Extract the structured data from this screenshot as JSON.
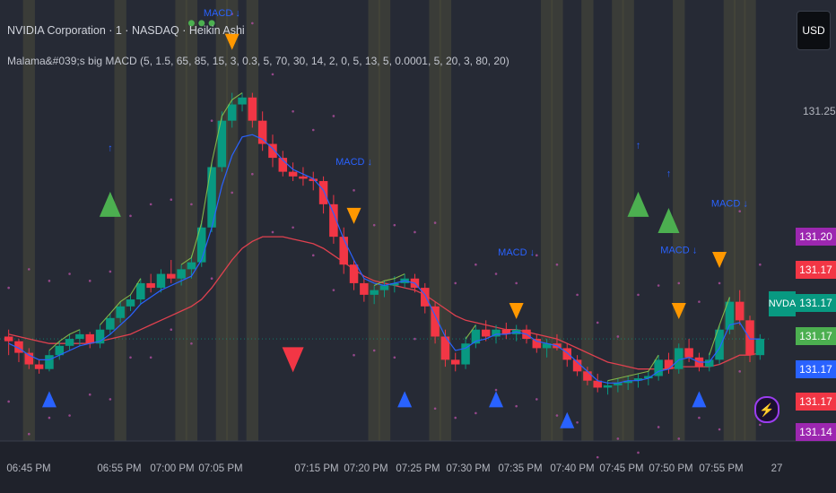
{
  "header": {
    "title_line": "NVIDIA Corporation · 1 · NASDAQ · Heikin Ashi",
    "indicator_line": "Malama&#039;s big MACD (5, 1.5, 65, 85, 15, 3, 0.3, 5, 70, 30, 14, 2, 0, 5, 13, 5, 0.0001, 5, 20, 3, 80, 20)"
  },
  "currency_button": "USD",
  "symbol_tag": "NVDA",
  "price_axis": {
    "level_label": "131.25",
    "tags": [
      {
        "value": "131.20",
        "color": "#9c27b0"
      },
      {
        "value": "131.17",
        "color": "#f23645"
      },
      {
        "value": "131.17",
        "color": "#089981"
      },
      {
        "value": "131.17",
        "color": "#4caf50"
      },
      {
        "value": "131.17",
        "color": "#2962ff"
      },
      {
        "value": "131.17",
        "color": "#f23645"
      },
      {
        "value": "131.14",
        "color": "#9c27b0"
      }
    ]
  },
  "time_axis": {
    "labels": [
      "06:45 PM",
      "06:55 PM",
      "07:00 PM",
      "07:05 PM",
      "07:15 PM",
      "07:20 PM",
      "07:25 PM",
      "07:30 PM",
      "07:35 PM",
      "07:40 PM",
      "07:45 PM",
      "07:50 PM",
      "07:55 PM",
      "27"
    ]
  },
  "icons": {
    "bolt": "lightning-icon"
  },
  "chart_data": {
    "type": "candlestick",
    "chart_style": "Heikin Ashi",
    "symbol": "NVDA",
    "interval": "1",
    "ylim": [
      131.12,
      131.31
    ],
    "colors": {
      "up": "#089981",
      "down": "#f23645",
      "ma_fast": "#2962ff",
      "ma_slow": "#e0414f",
      "trend_line": "#8bc34a"
    },
    "candles": [
      [
        131.165,
        131.168,
        131.157,
        131.163
      ],
      [
        131.163,
        131.164,
        131.154,
        131.158
      ],
      [
        131.158,
        131.16,
        131.151,
        131.153
      ],
      [
        131.153,
        131.155,
        131.149,
        131.151
      ],
      [
        131.151,
        131.159,
        131.15,
        131.157
      ],
      [
        131.157,
        131.163,
        131.155,
        131.161
      ],
      [
        131.161,
        131.166,
        131.159,
        131.164
      ],
      [
        131.164,
        131.168,
        131.161,
        131.166
      ],
      [
        131.166,
        131.167,
        131.16,
        131.162
      ],
      [
        131.162,
        131.17,
        131.16,
        131.168
      ],
      [
        131.168,
        131.175,
        131.166,
        131.173
      ],
      [
        131.173,
        131.18,
        131.171,
        131.178
      ],
      [
        131.178,
        131.183,
        131.176,
        131.181
      ],
      [
        131.181,
        131.19,
        131.179,
        131.188
      ],
      [
        131.188,
        131.192,
        131.184,
        131.186
      ],
      [
        131.186,
        131.194,
        131.184,
        131.192
      ],
      [
        131.192,
        131.198,
        131.188,
        131.19
      ],
      [
        131.19,
        131.196,
        131.187,
        131.194
      ],
      [
        131.194,
        131.2,
        131.19,
        131.197
      ],
      [
        131.197,
        131.215,
        131.195,
        131.212
      ],
      [
        131.212,
        131.24,
        131.21,
        131.238
      ],
      [
        131.238,
        131.262,
        131.236,
        131.258
      ],
      [
        131.258,
        131.27,
        131.255,
        131.265
      ],
      [
        131.265,
        131.27,
        131.262,
        131.268
      ],
      [
        131.268,
        131.27,
        131.255,
        131.258
      ],
      [
        131.258,
        131.262,
        131.245,
        131.248
      ],
      [
        131.248,
        131.252,
        131.238,
        131.242
      ],
      [
        131.242,
        131.245,
        131.234,
        131.236
      ],
      [
        131.236,
        131.24,
        131.232,
        131.234
      ],
      [
        131.234,
        131.238,
        131.23,
        131.233
      ],
      [
        131.233,
        131.236,
        131.228,
        131.232
      ],
      [
        131.232,
        131.234,
        131.218,
        131.222
      ],
      [
        131.222,
        131.226,
        131.205,
        131.208
      ],
      [
        131.208,
        131.212,
        131.192,
        131.196
      ],
      [
        131.196,
        131.198,
        131.185,
        131.188
      ],
      [
        131.188,
        131.19,
        131.18,
        131.183
      ],
      [
        131.183,
        131.187,
        131.179,
        131.185
      ],
      [
        131.185,
        131.189,
        131.182,
        131.187
      ],
      [
        131.187,
        131.191,
        131.184,
        131.188
      ],
      [
        131.188,
        131.192,
        131.186,
        131.19
      ],
      [
        131.19,
        131.192,
        131.184,
        131.186
      ],
      [
        131.186,
        131.188,
        131.175,
        131.178
      ],
      [
        131.178,
        131.18,
        131.162,
        131.165
      ],
      [
        131.165,
        131.168,
        131.152,
        131.155
      ],
      [
        131.155,
        131.158,
        131.15,
        131.153
      ],
      [
        131.153,
        131.165,
        131.151,
        131.162
      ],
      [
        131.162,
        131.17,
        131.16,
        131.168
      ],
      [
        131.168,
        131.172,
        131.163,
        131.165
      ],
      [
        131.165,
        131.17,
        131.162,
        131.168
      ],
      [
        131.168,
        131.171,
        131.164,
        131.166
      ],
      [
        131.166,
        131.17,
        131.163,
        131.168
      ],
      [
        131.168,
        131.17,
        131.162,
        131.164
      ],
      [
        131.164,
        131.166,
        131.158,
        131.16
      ],
      [
        131.16,
        131.164,
        131.156,
        131.162
      ],
      [
        131.162,
        131.166,
        131.159,
        131.16
      ],
      [
        131.16,
        131.162,
        131.152,
        131.155
      ],
      [
        131.155,
        131.157,
        131.148,
        131.15
      ],
      [
        131.15,
        131.152,
        131.144,
        131.146
      ],
      [
        131.146,
        131.149,
        131.141,
        131.143
      ],
      [
        131.143,
        131.146,
        131.14,
        131.144
      ],
      [
        131.144,
        131.147,
        131.141,
        131.145
      ],
      [
        131.145,
        131.148,
        131.142,
        131.146
      ],
      [
        131.146,
        131.149,
        131.143,
        131.147
      ],
      [
        131.147,
        131.15,
        131.144,
        131.148
      ],
      [
        131.148,
        131.157,
        131.146,
        131.155
      ],
      [
        131.155,
        131.158,
        131.149,
        131.151
      ],
      [
        131.151,
        131.162,
        131.149,
        131.16
      ],
      [
        131.16,
        131.164,
        131.154,
        131.156
      ],
      [
        131.156,
        131.158,
        131.15,
        131.152
      ],
      [
        131.152,
        131.158,
        131.15,
        131.155
      ],
      [
        131.155,
        131.17,
        131.153,
        131.168
      ],
      [
        131.168,
        131.182,
        131.166,
        131.18
      ],
      [
        131.18,
        131.185,
        131.17,
        131.172
      ],
      [
        131.172,
        131.174,
        131.154,
        131.157
      ],
      [
        131.157,
        131.166,
        131.155,
        131.164
      ]
    ],
    "ma_fast": [
      131.162,
      131.16,
      131.157,
      131.155,
      131.155,
      131.157,
      131.159,
      131.161,
      131.162,
      131.163,
      131.166,
      131.17,
      131.174,
      131.179,
      131.182,
      131.185,
      131.187,
      131.189,
      131.191,
      131.198,
      131.212,
      131.23,
      131.243,
      131.251,
      131.252,
      131.25,
      131.246,
      131.241,
      131.237,
      131.235,
      131.233,
      131.228,
      131.218,
      131.207,
      131.198,
      131.19,
      131.188,
      131.187,
      131.188,
      131.189,
      131.188,
      131.183,
      131.174,
      131.165,
      131.159,
      131.16,
      131.163,
      131.164,
      131.166,
      131.166,
      131.167,
      131.166,
      131.163,
      131.162,
      131.161,
      131.158,
      131.154,
      131.15,
      131.146,
      131.145,
      131.145,
      131.146,
      131.146,
      131.147,
      131.15,
      131.151,
      131.155,
      131.156,
      131.154,
      131.154,
      131.16,
      131.17,
      131.171,
      131.164,
      131.164
    ],
    "ma_slow": [
      131.166,
      131.165,
      131.164,
      131.163,
      131.162,
      131.162,
      131.162,
      131.162,
      131.162,
      131.163,
      131.164,
      131.165,
      131.166,
      131.168,
      131.17,
      131.172,
      131.174,
      131.176,
      131.178,
      131.181,
      131.186,
      131.192,
      131.198,
      131.203,
      131.206,
      131.208,
      131.208,
      131.208,
      131.207,
      131.206,
      131.205,
      131.203,
      131.2,
      131.197,
      131.194,
      131.191,
      131.189,
      131.188,
      131.187,
      131.186,
      131.185,
      131.183,
      131.18,
      131.177,
      131.174,
      131.172,
      131.171,
      131.17,
      131.169,
      131.168,
      131.168,
      131.167,
      131.166,
      131.165,
      131.164,
      131.162,
      131.16,
      131.158,
      131.156,
      131.154,
      131.153,
      131.152,
      131.151,
      131.151,
      131.151,
      131.151,
      131.152,
      131.152,
      131.152,
      131.152,
      131.153,
      131.155,
      131.157,
      131.157,
      131.158
    ],
    "shaded_columns": [
      2,
      11,
      17,
      18,
      21,
      22,
      24,
      36,
      37,
      42,
      43,
      53,
      54,
      57,
      60,
      61,
      66,
      71,
      72,
      73
    ],
    "markers": [
      {
        "type": "triangle-up",
        "color": "#4caf50",
        "bar": 10,
        "price": 131.222,
        "size": "large"
      },
      {
        "type": "triangle-up",
        "color": "#4caf50",
        "bar": 62,
        "price": 131.222,
        "size": "large"
      },
      {
        "type": "triangle-up",
        "color": "#4caf50",
        "bar": 65,
        "price": 131.215,
        "size": "large"
      },
      {
        "type": "triangle-down",
        "color": "#f23645",
        "bar": 28,
        "price": 131.155,
        "size": "large"
      },
      {
        "type": "triangle-down",
        "color": "#ff9800",
        "bar": 22,
        "price": 131.292,
        "size": "small"
      },
      {
        "type": "triangle-down",
        "color": "#ff9800",
        "bar": 34,
        "price": 131.217,
        "size": "small"
      },
      {
        "type": "triangle-down",
        "color": "#ff9800",
        "bar": 50,
        "price": 131.176,
        "size": "small"
      },
      {
        "type": "triangle-down",
        "color": "#ff9800",
        "bar": 66,
        "price": 131.176,
        "size": "small"
      },
      {
        "type": "triangle-down",
        "color": "#ff9800",
        "bar": 70,
        "price": 131.198,
        "size": "small"
      },
      {
        "type": "triangle-up",
        "color": "#2962ff",
        "bar": 4,
        "price": 131.138,
        "size": "small"
      },
      {
        "type": "triangle-up",
        "color": "#2962ff",
        "bar": 39,
        "price": 131.138,
        "size": "small"
      },
      {
        "type": "triangle-up",
        "color": "#2962ff",
        "bar": 48,
        "price": 131.138,
        "size": "small"
      },
      {
        "type": "triangle-up",
        "color": "#2962ff",
        "bar": 55,
        "price": 131.129,
        "size": "small"
      },
      {
        "type": "triangle-up",
        "color": "#2962ff",
        "bar": 68,
        "price": 131.138,
        "size": "small"
      }
    ],
    "dots": [
      {
        "bar": 18,
        "price": 131.3
      },
      {
        "bar": 19,
        "price": 131.3
      },
      {
        "bar": 20,
        "price": 131.3
      }
    ],
    "text_annotations": [
      {
        "text": "MACD ↓",
        "bar": 21,
        "price": 131.303,
        "color": "#2962ff"
      },
      {
        "text": "MACD ↓",
        "bar": 34,
        "price": 131.239,
        "color": "#2962ff"
      },
      {
        "text": "MACD ↓",
        "bar": 50,
        "price": 131.2,
        "color": "#2962ff"
      },
      {
        "text": "MACD ↓",
        "bar": 66,
        "price": 131.201,
        "color": "#2962ff"
      },
      {
        "text": "MACD ↓",
        "bar": 71,
        "price": 131.221,
        "color": "#2962ff"
      },
      {
        "text": "↑",
        "bar": 10,
        "price": 131.245,
        "color": "#2962ff"
      },
      {
        "text": "↑",
        "bar": 62,
        "price": 131.246,
        "color": "#2962ff"
      },
      {
        "text": "↑",
        "bar": 65,
        "price": 131.234,
        "color": "#2962ff"
      }
    ]
  }
}
